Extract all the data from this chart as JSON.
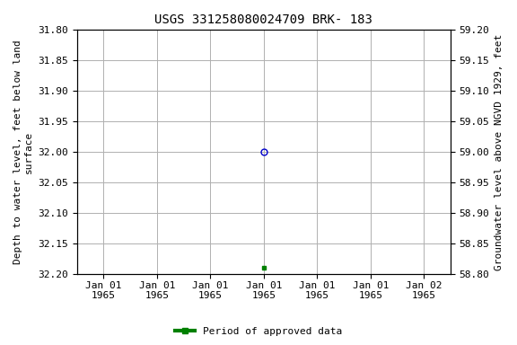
{
  "title": "USGS 331258080024709 BRK- 183",
  "ylabel_left_lines": [
    "Depth to water level, feet below land",
    "surface"
  ],
  "ylabel_right": "Groundwater level above NGVD 1929, feet",
  "yticks_left": [
    31.8,
    31.85,
    31.9,
    31.95,
    32.0,
    32.05,
    32.1,
    32.15,
    32.2
  ],
  "yticks_right": [
    58.8,
    58.85,
    58.9,
    58.95,
    59.0,
    59.05,
    59.1,
    59.15,
    59.2
  ],
  "xtick_labels": [
    "Jan 01\n1965",
    "Jan 01\n1965",
    "Jan 01\n1965",
    "Jan 01\n1965",
    "Jan 01\n1965",
    "Jan 01\n1965",
    "Jan 02\n1965"
  ],
  "xtick_positions": [
    0,
    1,
    2,
    3,
    4,
    5,
    6
  ],
  "blue_point_x": 3.0,
  "blue_point_y": 32.0,
  "green_point_x": 3.0,
  "green_point_y": 32.19,
  "blue_color": "#0000cc",
  "green_color": "#008000",
  "bg_color": "#ffffff",
  "grid_color": "#b0b0b0",
  "legend_label": "Period of approved data",
  "font_family": "Courier New",
  "title_fontsize": 10,
  "label_fontsize": 8,
  "tick_fontsize": 8
}
